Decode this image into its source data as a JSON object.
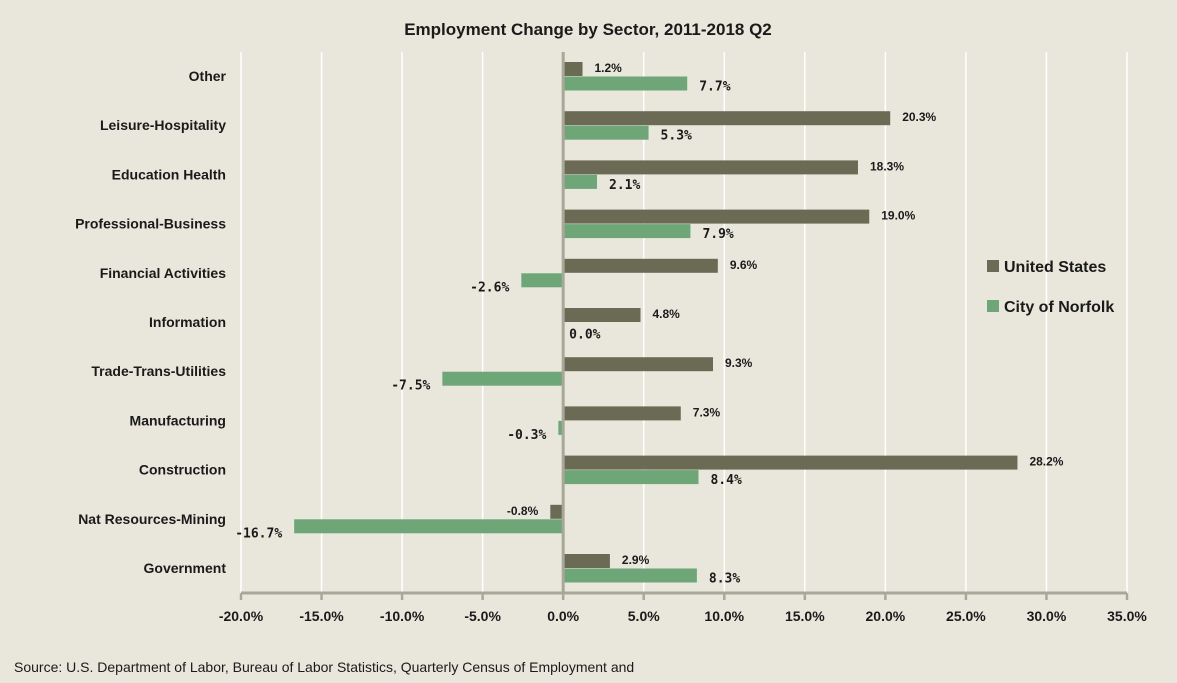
{
  "chart_data": {
    "type": "bar",
    "orientation": "horizontal",
    "title": "Employment Change by Sector, 2011-2018 Q2",
    "categories": [
      "Other",
      "Leisure-Hospitality",
      "Education Health",
      "Professional-Business",
      "Financial Activities",
      "Information",
      "Trade-Trans-Utilities",
      "Manufacturing",
      "Construction",
      "Nat Resources-Mining",
      "Government"
    ],
    "series": [
      {
        "name": "United States",
        "color": "#6b6b55",
        "values": [
          1.2,
          20.3,
          18.3,
          19.0,
          9.6,
          4.8,
          9.3,
          7.3,
          28.2,
          -0.8,
          2.9
        ],
        "labels": [
          "1.2%",
          "20.3%",
          "18.3%",
          "19.0%",
          "9.6%",
          "4.8%",
          "9.3%",
          "7.3%",
          "28.2%",
          "-0.8%",
          "2.9%"
        ]
      },
      {
        "name": "City of Norfolk",
        "color": "#6fa678",
        "values": [
          7.7,
          5.3,
          2.1,
          7.9,
          -2.6,
          0.0,
          -7.5,
          -0.3,
          8.4,
          -16.7,
          8.3
        ],
        "labels": [
          "7.7%",
          "5.3%",
          "2.1%",
          "7.9%",
          "-2.6%",
          "0.0%",
          "-7.5%",
          "-0.3%",
          "8.4%",
          "-16.7%",
          "8.3%"
        ]
      }
    ],
    "x_axis": {
      "min": -20,
      "max": 35,
      "step": 5,
      "tick_labels": [
        "-20.0%",
        "-15.0%",
        "-10.0%",
        "-5.0%",
        "0.0%",
        "5.0%",
        "10.0%",
        "15.0%",
        "20.0%",
        "25.0%",
        "30.0%",
        "35.0%"
      ]
    },
    "grid": true,
    "legend_position": "right"
  },
  "source_text": "Source: U.S. Department of Labor, Bureau of Labor Statistics, Quarterly Census of Employment and"
}
